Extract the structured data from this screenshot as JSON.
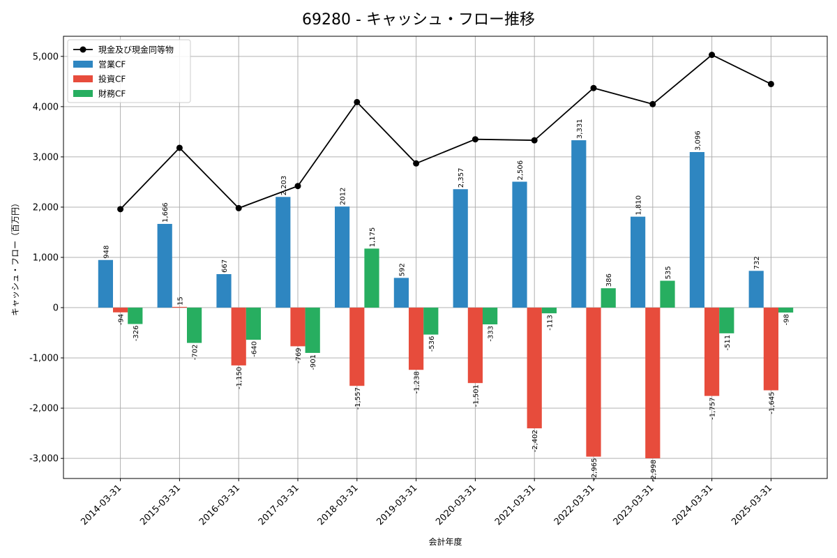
{
  "chart_data": {
    "type": "bar",
    "title": "69280 - キャッシュ・フロー推移",
    "xlabel": "会計年度",
    "ylabel": "キャッシュ・フロー（百万円）",
    "ylim": [
      -3400,
      5400
    ],
    "yticks": [
      -3000,
      -2000,
      -1000,
      0,
      1000,
      2000,
      3000,
      4000,
      5000
    ],
    "ytick_labels": [
      "-3,000",
      "-2,000",
      "-1,000",
      "0",
      "1,000",
      "2,000",
      "3,000",
      "4,000",
      "5,000"
    ],
    "grid": true,
    "legend_position": "top-left",
    "categories": [
      "2014-03-31",
      "2015-03-31",
      "2016-03-31",
      "2017-03-31",
      "2018-03-31",
      "2019-03-31",
      "2020-03-31",
      "2021-03-31",
      "2022-03-31",
      "2023-03-31",
      "2024-03-31",
      "2025-03-31"
    ],
    "series": [
      {
        "name": "営業CF",
        "kind": "bar",
        "color": "#2e86c1",
        "values": [
          948,
          1666,
          667,
          2203,
          2012,
          592,
          2357,
          2506,
          3331,
          1810,
          3096,
          732
        ],
        "labels": [
          "948",
          "1,666",
          "667",
          "2,203",
          "2012",
          "592",
          "2,357",
          "2,506",
          "3,331",
          "1,810",
          "3,096",
          "732"
        ]
      },
      {
        "name": "投資CF",
        "kind": "bar",
        "color": "#e74c3c",
        "values": [
          -94,
          15,
          -1150,
          -769,
          -1557,
          -1238,
          -1501,
          -2402,
          -2965,
          -2998,
          -1757,
          -1645
        ],
        "labels": [
          "-94",
          "15",
          "-1,150",
          "-769",
          "-1,557",
          "-1,238",
          "-1,501",
          "-2,402",
          "-2,965",
          "-2,998",
          "-1,757",
          "-1,645"
        ]
      },
      {
        "name": "財務CF",
        "kind": "bar",
        "color": "#27ae60",
        "values": [
          -326,
          -702,
          -640,
          -901,
          1175,
          -536,
          -333,
          -113,
          386,
          535,
          -511,
          -98
        ],
        "labels": [
          "-326",
          "-702",
          "-640",
          "-901",
          "1,175",
          "-536",
          "-333",
          "-113",
          "386",
          "535",
          "-511",
          "-98"
        ]
      },
      {
        "name": "現金及び現金同等物",
        "kind": "line",
        "color": "#000000",
        "values": [
          1960,
          3180,
          1980,
          2420,
          4090,
          2870,
          3350,
          3330,
          4370,
          4050,
          5030,
          4450
        ]
      }
    ]
  }
}
